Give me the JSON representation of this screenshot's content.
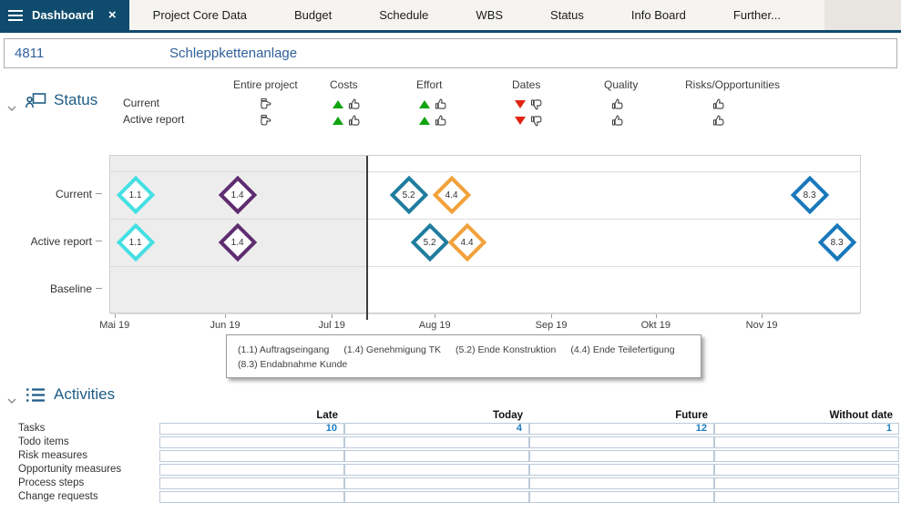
{
  "tab_bar": {
    "active_tab": {
      "label": "Dashboard"
    },
    "close_glyph": "×",
    "tabs": [
      "Project Core Data",
      "Budget",
      "Schedule",
      "WBS",
      "Status",
      "Info Board",
      "Further..."
    ]
  },
  "project_header": {
    "number": "4811",
    "name": "Schleppkettenanlage"
  },
  "status": {
    "title": "Status",
    "row_labels": [
      "Current",
      "Active report"
    ],
    "columns": [
      {
        "label": "Entire project",
        "trend": "none",
        "rating": "neutral"
      },
      {
        "label": "Costs",
        "trend": "up",
        "rating": "up"
      },
      {
        "label": "Effort",
        "trend": "up",
        "rating": "up"
      },
      {
        "label": "Dates",
        "trend": "down",
        "rating": "down"
      },
      {
        "label": "Quality",
        "trend": "none",
        "rating": "up"
      },
      {
        "label": "Risks/Opportunities",
        "trend": "none",
        "rating": "up"
      }
    ]
  },
  "chart_data": {
    "type": "milestone-timeline",
    "row_labels": [
      "Current",
      "Active report",
      "Baseline"
    ],
    "x_ticks": [
      {
        "label": "Mai 19",
        "pct": 0.7
      },
      {
        "label": "Jun 19",
        "pct": 15.4
      },
      {
        "label": "Jul 19",
        "pct": 29.6
      },
      {
        "label": "Aug 19",
        "pct": 43.3
      },
      {
        "label": "Sep 19",
        "pct": 58.8
      },
      {
        "label": "Okt 19",
        "pct": 72.7
      },
      {
        "label": "Nov 19",
        "pct": 86.8
      }
    ],
    "today_pct": 34.3,
    "milestones": [
      {
        "id": "1.1",
        "name": "Auftragseingang",
        "color": "#45dfe2",
        "positions": {
          "Current": 3.4,
          "Active report": 3.4
        }
      },
      {
        "id": "1.4",
        "name": "Genehmigung TK",
        "color": "#5e2d70",
        "positions": {
          "Current": 17.0,
          "Active report": 17.0
        }
      },
      {
        "id": "5.2",
        "name": "Ende Konstruktion",
        "color": "#1f7d9e",
        "positions": {
          "Current": 39.8,
          "Active report": 42.7
        }
      },
      {
        "id": "4.4",
        "name": "Ende Teilefertigung",
        "color": "#f2a13a",
        "positions": {
          "Current": 45.6,
          "Active report": 47.6
        }
      },
      {
        "id": "8.3",
        "name": "Endabnahme Kunde",
        "color": "#1878bc",
        "positions": {
          "Current": 93.3,
          "Active report": 97.0
        }
      }
    ],
    "legend": [
      "(1.1) Auftragseingang",
      "(1.4) Genehmigung TK",
      "(5.2) Ende Konstruktion",
      "(4.4) Ende Teilefertigung",
      "(8.3) Endabnahme Kunde"
    ]
  },
  "activities": {
    "title": "Activities",
    "columns": [
      "Late",
      "Today",
      "Future",
      "Without date"
    ],
    "rows": [
      {
        "label": "Tasks",
        "values": [
          "10",
          "4",
          "12",
          "1"
        ]
      },
      {
        "label": "Todo items",
        "values": [
          "",
          "",
          "",
          ""
        ]
      },
      {
        "label": "Risk measures",
        "values": [
          "",
          "",
          "",
          ""
        ]
      },
      {
        "label": "Opportunity measures",
        "values": [
          "",
          "",
          "",
          ""
        ]
      },
      {
        "label": "Process steps",
        "values": [
          "",
          "",
          "",
          ""
        ]
      },
      {
        "label": "Change requests",
        "values": [
          "",
          "",
          "",
          ""
        ]
      }
    ]
  },
  "colors": {
    "navy": "#0f4b6d",
    "section_title_blue": "#1e5c85",
    "header_text_blue": "#30609a",
    "value_link_blue": "#1b7ec2",
    "trend_up_green": "#0fa30f",
    "trend_down_red": "#e02412",
    "past_shading_gray": "#ededed",
    "milestone_cyan": "#45dfe2",
    "milestone_purple": "#5e2d70",
    "milestone_teal": "#1f7d9e",
    "milestone_orange": "#f2a13a",
    "milestone_blue": "#1878bc"
  }
}
